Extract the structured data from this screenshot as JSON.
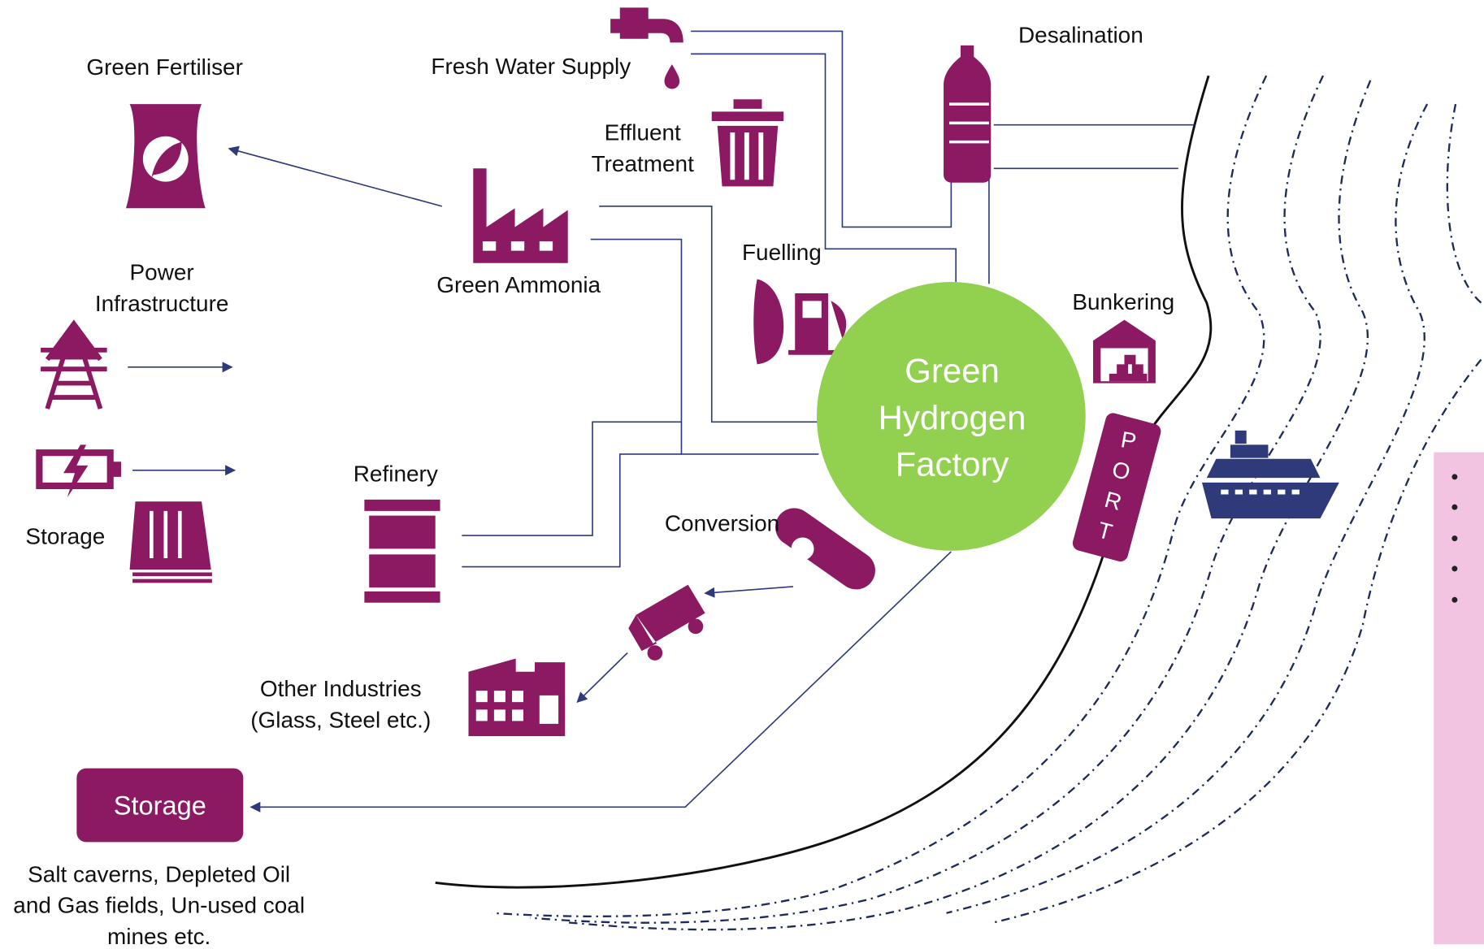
{
  "labels": {
    "green_fertiliser": [
      "Green Fertiliser"
    ],
    "fresh_water_supply": [
      "Fresh Water Supply"
    ],
    "desalination": [
      "Desalination"
    ],
    "effluent_treatment": [
      "Effluent",
      "Treatment"
    ],
    "power_infrastructure": [
      "Power",
      "Infrastructure"
    ],
    "green_ammonia": [
      "Green Ammonia"
    ],
    "fuelling": [
      "Fuelling"
    ],
    "bunkering": [
      "Bunkering"
    ],
    "factory": [
      "Green",
      "Hydrogen",
      "Factory"
    ],
    "refinery": [
      "Refinery"
    ],
    "storage_left": [
      "Storage"
    ],
    "conversion": [
      "Conversion"
    ],
    "port": [
      "P",
      "O",
      "R",
      "T"
    ],
    "other_industries": [
      "Other Industries",
      "(Glass, Steel etc.)"
    ],
    "storage_box": [
      "Storage"
    ],
    "storage_note": [
      "Salt caverns, Depleted Oil",
      "and Gas fields, Un-used coal",
      "mines etc."
    ]
  }
}
